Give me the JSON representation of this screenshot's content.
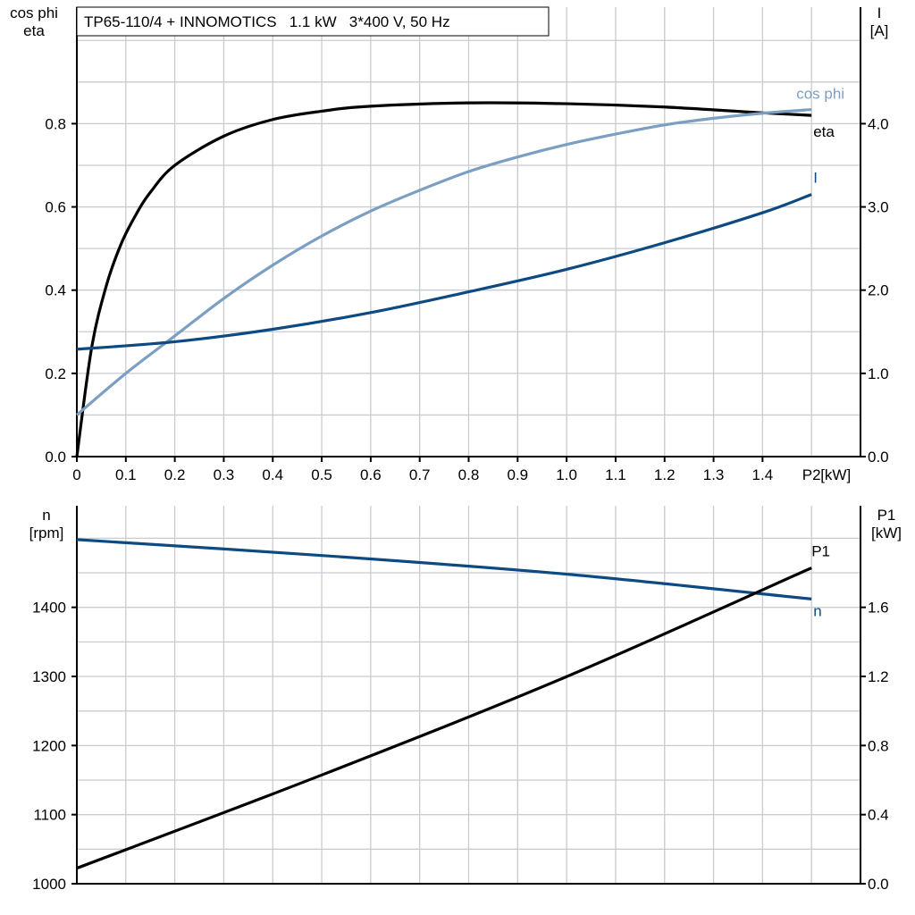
{
  "title": "TP65-110/4 + INNOMOTICS   1.1 kW   3*400 V, 50 Hz",
  "colors": {
    "eta": "#000000",
    "cosphi": "#7b9fc2",
    "I": "#0d4a82",
    "n": "#0d4a82",
    "P1": "#000000",
    "grid": "#c8cbcf"
  },
  "chart_data": [
    {
      "type": "line",
      "title": "TP65-110/4 + INNOMOTICS   1.1 kW   3*400 V, 50 Hz",
      "xlabel": "P2 [kW]",
      "xlabel_main": "P2",
      "xlabel_unit": "[kW]",
      "ylabel_left": [
        "cos phi",
        "eta"
      ],
      "ylabel_right": [
        "I",
        "[A]"
      ],
      "xlim": [
        0,
        1.6
      ],
      "ylim_left": [
        0,
        1.08
      ],
      "ylim_right": [
        0,
        5.4
      ],
      "grid": true,
      "x_ticks": [
        "0",
        "0.1",
        "0.2",
        "0.3",
        "0.4",
        "0.5",
        "0.6",
        "0.7",
        "0.8",
        "0.9",
        "1.0",
        "1.1",
        "1.2",
        "1.3",
        "1.4"
      ],
      "y_ticks_left": [
        "0.0",
        "0.2",
        "0.4",
        "0.6",
        "0.8"
      ],
      "y_ticks_right": [
        "0.0",
        "1.0",
        "2.0",
        "3.0",
        "4.0"
      ],
      "series": [
        {
          "name": "eta",
          "axis": "left",
          "x": [
            0,
            0.03,
            0.06,
            0.09,
            0.12,
            0.15,
            0.2,
            0.3,
            0.4,
            0.5,
            0.6,
            0.8,
            1.0,
            1.2,
            1.4,
            1.5
          ],
          "y": [
            0,
            0.26,
            0.41,
            0.51,
            0.58,
            0.635,
            0.7,
            0.77,
            0.81,
            0.83,
            0.842,
            0.85,
            0.848,
            0.84,
            0.826,
            0.82
          ]
        },
        {
          "name": "cos phi",
          "axis": "left",
          "x": [
            0,
            0.1,
            0.2,
            0.3,
            0.4,
            0.5,
            0.6,
            0.7,
            0.8,
            0.9,
            1.0,
            1.1,
            1.2,
            1.3,
            1.4,
            1.5
          ],
          "y": [
            0.1,
            0.2,
            0.29,
            0.38,
            0.46,
            0.53,
            0.59,
            0.64,
            0.685,
            0.72,
            0.75,
            0.775,
            0.797,
            0.813,
            0.825,
            0.834
          ]
        },
        {
          "name": "I",
          "axis": "right",
          "x": [
            0,
            0.2,
            0.4,
            0.6,
            0.8,
            1.0,
            1.2,
            1.4,
            1.5
          ],
          "y": [
            1.29,
            1.38,
            1.53,
            1.73,
            1.98,
            2.25,
            2.57,
            2.93,
            3.15
          ]
        }
      ]
    },
    {
      "type": "line",
      "xlim": [
        0,
        1.6
      ],
      "ylabel_left": [
        "n",
        "[rpm]"
      ],
      "ylabel_right": [
        "P1",
        "[kW]"
      ],
      "ylim_left": [
        1000,
        1547
      ],
      "ylim_right": [
        0,
        2.19
      ],
      "grid": true,
      "y_ticks_left": [
        "1000",
        "1100",
        "1200",
        "1300",
        "1400"
      ],
      "y_ticks_right": [
        "0.0",
        "0.4",
        "0.8",
        "1.2",
        "1.6"
      ],
      "series": [
        {
          "name": "n",
          "axis": "left",
          "x": [
            0,
            0.5,
            1.0,
            1.5
          ],
          "y": [
            1498,
            1475,
            1448,
            1412
          ]
        },
        {
          "name": "P1",
          "axis": "right",
          "x": [
            0,
            0.5,
            1.0,
            1.5
          ],
          "y": [
            0.09,
            0.63,
            1.2,
            1.83
          ]
        }
      ]
    }
  ]
}
